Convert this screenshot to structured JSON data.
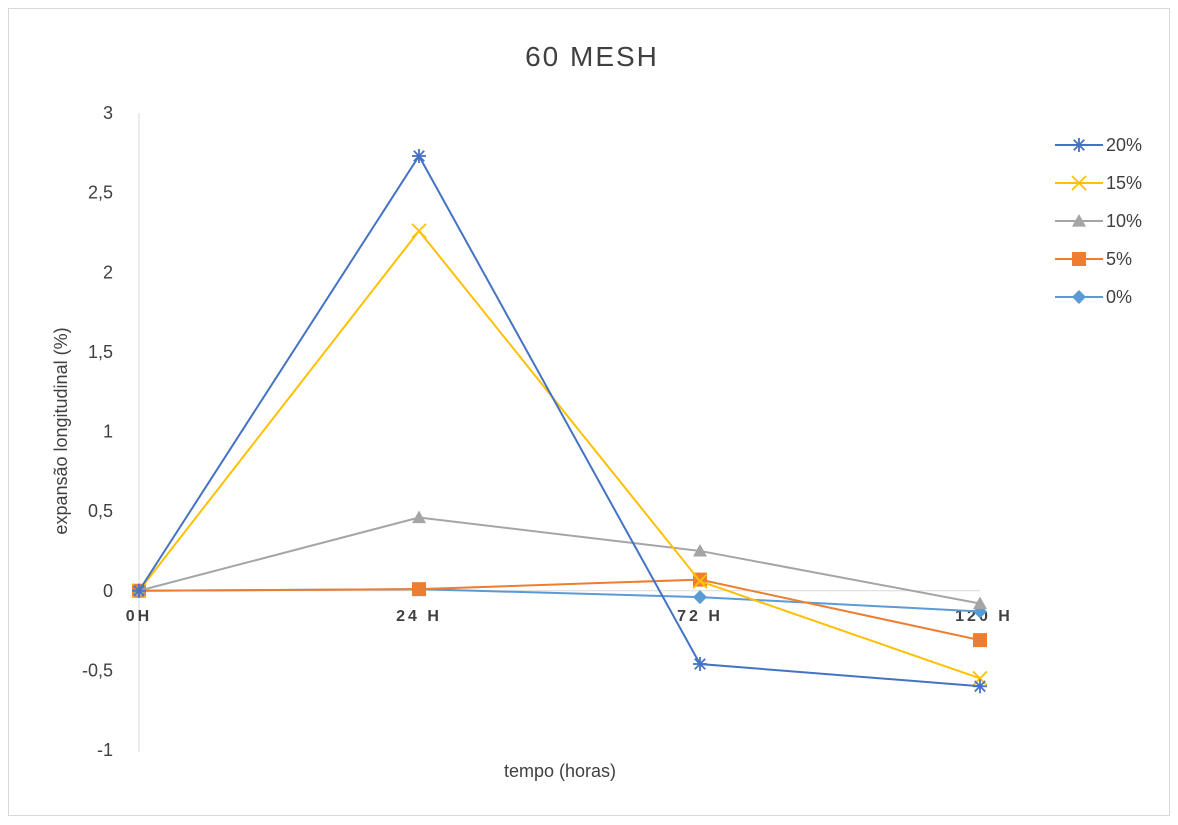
{
  "chart_data": {
    "type": "line",
    "title": "60 MESH",
    "xlabel": "tempo (horas)",
    "ylabel": "expansão longitudinal (%)",
    "categories": [
      "0H",
      "24 H",
      "72 H",
      "120 H"
    ],
    "yticks": [
      "3",
      "2,5",
      "2",
      "1,5",
      "1",
      "0,5",
      "0",
      "-0,5",
      "-1"
    ],
    "ytick_values": [
      3,
      2.5,
      2,
      1.5,
      1,
      0.5,
      0,
      -0.5,
      -1
    ],
    "ylim": [
      -1,
      3
    ],
    "grid": false,
    "legend_position": "right",
    "series": [
      {
        "name": "20%",
        "color": "#4472C4",
        "marker": "star",
        "values": [
          0,
          2.73,
          -0.46,
          -0.6
        ]
      },
      {
        "name": "15%",
        "color": "#FFC000",
        "marker": "x",
        "values": [
          0,
          2.26,
          0.06,
          -0.55
        ]
      },
      {
        "name": "10%",
        "color": "#A5A5A5",
        "marker": "triangle",
        "values": [
          0,
          0.46,
          0.25,
          -0.08
        ]
      },
      {
        "name": "5%",
        "color": "#ED7D31",
        "marker": "square",
        "values": [
          0,
          0.01,
          0.07,
          -0.31
        ]
      },
      {
        "name": "0%",
        "color": "#5B9BD5",
        "marker": "diamond",
        "values": [
          0,
          0.01,
          -0.04,
          -0.13
        ]
      }
    ]
  }
}
